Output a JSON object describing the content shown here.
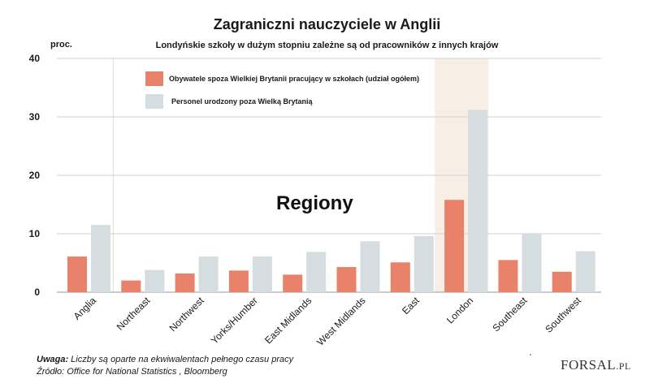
{
  "chart_data": {
    "type": "bar",
    "title": "Zagraniczni nauczyciele w Anglii",
    "subtitle": "Londyńskie szkoły w dużym stopniu zależne są od pracowników z innych krajów",
    "ylabel": "proc.",
    "annotation": "Regiony",
    "ylim": [
      0,
      40
    ],
    "yticks": [
      "0",
      "10",
      "20",
      "30",
      "40"
    ],
    "grid": true,
    "legend_position": "top-left",
    "highlight_category": "London",
    "categories": [
      "Anglia",
      "Northeast",
      "Northwest",
      "Yorks/Humber",
      "East Midlands",
      "West Midlands",
      "East",
      "London",
      "Southeast",
      "Southwest"
    ],
    "series": [
      {
        "name": "Obywatele spoza Wielkiej Brytanii pracujący w szkołach (udział ogółem)",
        "color": "#e8826a",
        "values": [
          6.1,
          2.0,
          3.2,
          3.7,
          3.0,
          4.3,
          5.1,
          15.8,
          5.5,
          3.5
        ]
      },
      {
        "name": "Personel urodzony poza Wielką Brytanią",
        "color": "#d5dde1",
        "values": [
          11.5,
          3.8,
          6.1,
          6.1,
          6.9,
          8.7,
          9.6,
          31.2,
          10.1,
          7.0
        ]
      }
    ]
  },
  "footer": {
    "note_label": "Uwaga:",
    "note_text": " Liczby są oparte na ekwiwalentach pełnego czasu pracy",
    "source": "Źródło: Office for National Statistics , Bloomberg",
    "logo": "FORSAL",
    "logo_suffix": ".PL",
    "tick_mark": "'"
  }
}
